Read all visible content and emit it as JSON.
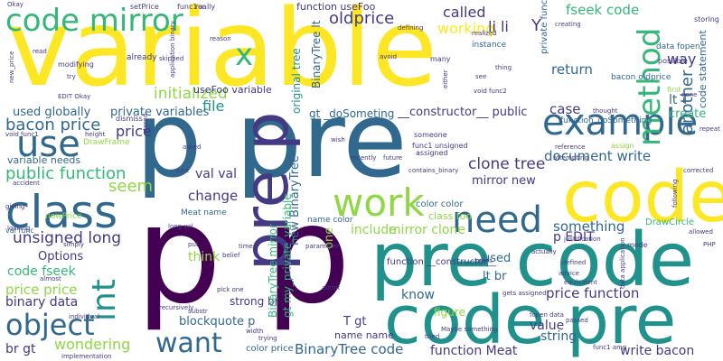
{
  "palette": {
    "yellow": "#fde725",
    "lime": "#8fd744",
    "green": "#35b779",
    "teal": "#21918c",
    "blue": "#31688e",
    "indigo": "#443a83",
    "purple": "#440154",
    "bg": "#ffffff"
  },
  "words": [
    {
      "text": "variable",
      "color": "#fde725"
    },
    {
      "text": "p pre",
      "color": "#31688e"
    },
    {
      "text": "p p",
      "color": "#440154"
    },
    {
      "text": "pre code",
      "color": "#21918c"
    },
    {
      "text": "code pre",
      "color": "#21918c"
    },
    {
      "text": "code",
      "color": "#fde725"
    },
    {
      "text": "code mirror",
      "color": "#35b779"
    },
    {
      "text": "class",
      "color": "#31688e"
    },
    {
      "text": "pre p",
      "color": "#443a83"
    },
    {
      "text": "example",
      "color": "#31688e"
    },
    {
      "text": "use",
      "color": "#31688e"
    },
    {
      "text": "work",
      "color": "#8fd744"
    },
    {
      "text": "need",
      "color": "#31688e"
    },
    {
      "text": "int",
      "color": "#21918c"
    },
    {
      "text": "object",
      "color": "#31688e"
    },
    {
      "text": "want",
      "color": "#31688e"
    },
    {
      "text": "method",
      "color": "#35b779"
    },
    {
      "text": "x",
      "color": "#35b779"
    },
    {
      "text": "oldprice",
      "color": "#443a83"
    },
    {
      "text": "called",
      "color": "#443a83"
    },
    {
      "text": "working",
      "color": "#fde725"
    },
    {
      "text": "li li",
      "color": "#443a83"
    },
    {
      "text": "fseek code",
      "color": "#35b779"
    },
    {
      "text": "way",
      "color": "#443a83"
    },
    {
      "text": "another",
      "color": "#31688e"
    },
    {
      "text": "return",
      "color": "#31688e"
    },
    {
      "text": "lt T",
      "color": "#31688e"
    },
    {
      "text": "case",
      "color": "#443a83"
    },
    {
      "text": "create",
      "color": "#35b779"
    },
    {
      "text": "document write",
      "color": "#31688e"
    },
    {
      "text": "clone tree",
      "color": "#443a83"
    },
    {
      "text": "mirror new",
      "color": "#443a83"
    },
    {
      "text": "mirror clone",
      "color": "#8fd744"
    },
    {
      "text": "new BinaryTree",
      "color": "#31688e"
    },
    {
      "text": "val val",
      "color": "#443a83"
    },
    {
      "text": "initialized",
      "color": "#8fd744"
    },
    {
      "text": "file",
      "color": "#21918c"
    },
    {
      "text": "bacon price",
      "color": "#31688e"
    },
    {
      "text": "public function",
      "color": "#35b779"
    },
    {
      "text": "price",
      "color": "#443a83"
    },
    {
      "text": "seem",
      "color": "#8fd744"
    },
    {
      "text": "change",
      "color": "#443a83"
    },
    {
      "text": "think",
      "color": "#8fd744"
    },
    {
      "text": "unsigned long",
      "color": "#443a83"
    },
    {
      "text": "Options",
      "color": "#443a83"
    },
    {
      "text": "code fseek",
      "color": "#35b779"
    },
    {
      "text": "price price",
      "color": "#8fd744"
    },
    {
      "text": "binary data",
      "color": "#443a83"
    },
    {
      "text": "blockquote p",
      "color": "#31688e"
    },
    {
      "text": "wondering",
      "color": "#8fd744"
    },
    {
      "text": "br gt",
      "color": "#443a83"
    },
    {
      "text": "BinaryTree code",
      "color": "#31688e"
    },
    {
      "text": "function Meat",
      "color": "#443a83"
    },
    {
      "text": "write bacon",
      "color": "#443a83"
    },
    {
      "text": "price function",
      "color": "#443a83"
    },
    {
      "text": "value",
      "color": "#443a83"
    },
    {
      "text": "string",
      "color": "#31688e"
    },
    {
      "text": "know",
      "color": "#31688e"
    },
    {
      "text": "something",
      "color": "#31688e"
    },
    {
      "text": "p EDIT",
      "color": "#443a83"
    },
    {
      "text": "lt br",
      "color": "#31688e"
    },
    {
      "text": "include",
      "color": "#8fd744"
    },
    {
      "text": "one",
      "color": "#8fd744"
    },
    {
      "text": "used globally",
      "color": "#31688e"
    },
    {
      "text": "private variables",
      "color": "#31688e"
    },
    {
      "text": "gt _doSometing",
      "color": "#31688e"
    },
    {
      "text": "__constructor__ public",
      "color": "#443a83"
    },
    {
      "text": "original tree",
      "color": "#21918c"
    },
    {
      "text": "BinaryTree lt",
      "color": "#31688e"
    },
    {
      "text": "function useFoo",
      "color": "#443a83"
    },
    {
      "text": "useFoo variable",
      "color": "#443a83"
    },
    {
      "text": "variable needs",
      "color": "#31688e"
    },
    {
      "text": "used",
      "color": "#31688e"
    },
    {
      "text": "T gt",
      "color": "#443a83"
    },
    {
      "text": "name name",
      "color": "#443a83"
    },
    {
      "text": "figure",
      "color": "#8fd744"
    },
    {
      "text": "strong br",
      "color": "#443a83"
    },
    {
      "text": "color price",
      "color": "#31688e"
    },
    {
      "text": "class foo",
      "color": "#8fd744"
    },
    {
      "text": "color color",
      "color": "#31688e"
    },
    {
      "text": "gt my_private_variable",
      "color": "#35b779"
    },
    {
      "text": "BinaryTree mirror",
      "color": "#35b779"
    },
    {
      "text": "function __constructor__",
      "color": "#443a83"
    },
    {
      "text": "private function",
      "color": "#31688e"
    },
    {
      "text": "data fopen",
      "color": "#31688e"
    },
    {
      "text": "bacon oldprice",
      "color": "#31688e"
    },
    {
      "text": "function_doSomething",
      "color": "#31688e"
    },
    {
      "text": "DrawCircle",
      "color": "#35b779"
    },
    {
      "text": "DrawFrame",
      "color": "#8fd744"
    },
    {
      "text": "Meat name",
      "color": "#31688e"
    },
    {
      "text": "name color",
      "color": "#31688e"
    },
    {
      "text": "val func",
      "color": "#31688e"
    },
    {
      "text": "newPrice",
      "color": "#8fd744"
    },
    {
      "text": "setPrice",
      "color": "#443a83"
    },
    {
      "text": "func1 x",
      "color": "#443a83"
    },
    {
      "text": "really",
      "color": "#443a83"
    },
    {
      "text": "already",
      "color": "#443a83"
    },
    {
      "text": "modifying",
      "color": "#443a83"
    },
    {
      "text": "instance",
      "color": "#31688e"
    },
    {
      "text": "many",
      "color": "#443a83"
    },
    {
      "text": "storing",
      "color": "#443a83"
    },
    {
      "text": "possible",
      "color": "#443a83"
    },
    {
      "text": "first",
      "color": "#8fd744"
    },
    {
      "text": "assign",
      "color": "#8fd744"
    },
    {
      "text": "mode",
      "color": "#443a83"
    },
    {
      "text": "allowed",
      "color": "#443a83"
    },
    {
      "text": "PHP",
      "color": "#443a83"
    },
    {
      "text": "substr",
      "color": "#443a83"
    },
    {
      "text": "recursively",
      "color": "#443a83"
    },
    {
      "text": "trying",
      "color": "#443a83"
    },
    {
      "text": "implementation",
      "color": "#443a83"
    },
    {
      "text": "individual",
      "color": "#443a83"
    },
    {
      "text": "almost",
      "color": "#443a83"
    },
    {
      "text": "simply",
      "color": "#443a83"
    },
    {
      "text": "giving",
      "color": "#443a83"
    },
    {
      "text": "looking",
      "color": "#443a83"
    },
    {
      "text": "accident",
      "color": "#443a83"
    },
    {
      "text": "EDIT Okay",
      "color": "#443a83"
    },
    {
      "text": "new_price",
      "color": "#443a83"
    },
    {
      "text": "read",
      "color": "#443a83"
    },
    {
      "text": "Okay",
      "color": "#443a83"
    },
    {
      "text": "try",
      "color": "#443a83"
    },
    {
      "text": "skipped",
      "color": "#443a83"
    },
    {
      "text": "application binary",
      "color": "#443a83"
    },
    {
      "text": "reason",
      "color": "#443a83"
    },
    {
      "text": "asked",
      "color": "#443a83"
    },
    {
      "text": "sure",
      "color": "#443a83"
    },
    {
      "text": "put",
      "color": "#443a83"
    },
    {
      "text": "belief",
      "color": "#443a83"
    },
    {
      "text": "time",
      "color": "#443a83"
    },
    {
      "text": "pick one",
      "color": "#443a83"
    },
    {
      "text": "width",
      "color": "#443a83"
    },
    {
      "text": "admit",
      "color": "#443a83"
    },
    {
      "text": "parameter",
      "color": "#443a83"
    },
    {
      "text": "someone",
      "color": "#443a83"
    },
    {
      "text": "func1 unsigned",
      "color": "#443a83"
    },
    {
      "text": "assigned",
      "color": "#443a83"
    },
    {
      "text": "recently",
      "color": "#443a83"
    },
    {
      "text": "future",
      "color": "#443a83"
    },
    {
      "text": "wish",
      "color": "#443a83"
    },
    {
      "text": "avoid",
      "color": "#443a83"
    },
    {
      "text": "thing",
      "color": "#443a83"
    },
    {
      "text": "see",
      "color": "#443a83"
    },
    {
      "text": "void func2",
      "color": "#443a83"
    },
    {
      "text": "either",
      "color": "#443a83"
    },
    {
      "text": "thought",
      "color": "#443a83"
    },
    {
      "text": "creating",
      "color": "#443a83"
    },
    {
      "text": "realized",
      "color": "#443a83"
    },
    {
      "text": "defining",
      "color": "#443a83"
    },
    {
      "text": "dismiss",
      "color": "#443a83"
    },
    {
      "text": "stored",
      "color": "#443a83"
    },
    {
      "text": "reference",
      "color": "#443a83"
    },
    {
      "text": "attempting",
      "color": "#443a83"
    },
    {
      "text": "corrected",
      "color": "#443a83"
    },
    {
      "text": "following",
      "color": "#443a83"
    },
    {
      "text": "justification",
      "color": "#443a83"
    },
    {
      "text": "defined",
      "color": "#443a83"
    },
    {
      "text": "advice",
      "color": "#443a83"
    },
    {
      "text": "equivalent",
      "color": "#443a83"
    },
    {
      "text": "passed",
      "color": "#443a83"
    },
    {
      "text": "gets assigned",
      "color": "#443a83"
    },
    {
      "text": "fopen data",
      "color": "#443a83"
    },
    {
      "text": "data application",
      "color": "#443a83"
    },
    {
      "text": "tried",
      "color": "#443a83"
    },
    {
      "text": "Maybe something",
      "color": "#443a83"
    },
    {
      "text": "merit",
      "color": "#443a83"
    },
    {
      "text": "actually",
      "color": "#443a83"
    },
    {
      "text": "done",
      "color": "#443a83"
    },
    {
      "text": "repeat",
      "color": "#443a83"
    },
    {
      "text": "code statement",
      "color": "#31688e"
    },
    {
      "text": "void func1",
      "color": "#443a83"
    },
    {
      "text": "height",
      "color": "#443a83"
    },
    {
      "text": "long val",
      "color": "#443a83"
    },
    {
      "text": "contains_binary",
      "color": "#443a83"
    },
    {
      "text": "func1 amp",
      "color": "#443a83"
    },
    {
      "text": "Y",
      "color": "#443a83"
    }
  ]
}
